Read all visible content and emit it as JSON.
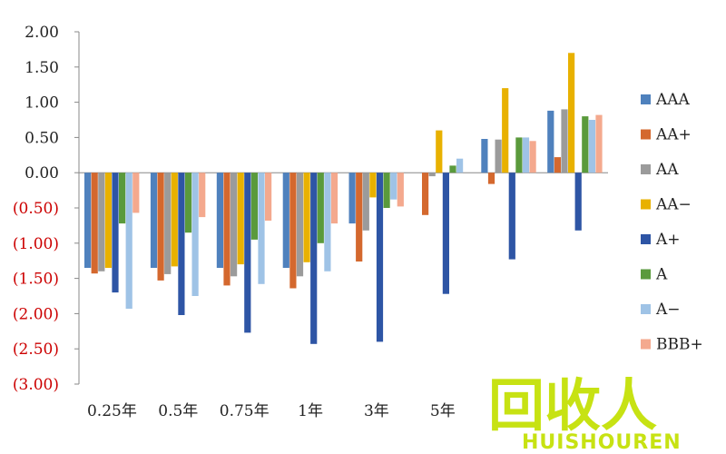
{
  "chart_data": {
    "type": "bar",
    "title": "",
    "xlabel": "",
    "ylabel": "",
    "categories": [
      "0.25年",
      "0.5年",
      "0.75年",
      "1年",
      "3年",
      "5年",
      "",
      ""
    ],
    "ylim": [
      -3.0,
      2.0
    ],
    "yticks": [
      2.0,
      1.5,
      1.0,
      0.5,
      0.0,
      -0.5,
      -1.0,
      -1.5,
      -2.0,
      -2.5,
      -3.0
    ],
    "ytick_labels": [
      "2.00",
      "1.50",
      "1.00",
      "0.50",
      "0.00",
      "(0.50)",
      "(1.00)",
      "(1.50)",
      "(2.00)",
      "(2.50)",
      "(3.00)"
    ],
    "negative_tick_color": "#cc0000",
    "positive_tick_color": "#222222",
    "grid": false,
    "legend_position": "right",
    "series": [
      {
        "name": "AAA",
        "color": "#4f81bd",
        "values": [
          -1.35,
          -1.35,
          -1.35,
          -1.35,
          -0.72,
          0.0,
          0.48,
          0.88
        ]
      },
      {
        "name": "AA+",
        "color": "#d4682e",
        "values": [
          -1.43,
          -1.53,
          -1.6,
          -1.64,
          -1.26,
          -0.6,
          -0.16,
          0.22
        ]
      },
      {
        "name": "AA",
        "color": "#9b9b9b",
        "values": [
          -1.4,
          -1.44,
          -1.47,
          -1.47,
          -0.82,
          -0.05,
          0.47,
          0.9
        ]
      },
      {
        "name": "AA−",
        "color": "#e8b100",
        "values": [
          -1.35,
          -1.33,
          -1.3,
          -1.27,
          -0.35,
          0.6,
          1.2,
          1.7
        ]
      },
      {
        "name": "A+",
        "color": "#2e55a5",
        "values": [
          -1.7,
          -2.02,
          -2.27,
          -2.43,
          -2.4,
          -1.72,
          -1.23,
          -0.82
        ]
      },
      {
        "name": "A",
        "color": "#5a9a3c",
        "values": [
          -0.72,
          -0.85,
          -0.95,
          -1.0,
          -0.5,
          0.1,
          0.5,
          0.8
        ]
      },
      {
        "name": "A−",
        "color": "#9fc3e6",
        "values": [
          -1.93,
          -1.75,
          -1.58,
          -1.4,
          -0.38,
          0.2,
          0.5,
          0.75
        ]
      },
      {
        "name": "BBB+",
        "color": "#f4a98e",
        "values": [
          -0.57,
          -0.63,
          -0.68,
          -0.72,
          -0.48,
          0.0,
          0.45,
          0.82
        ]
      }
    ]
  },
  "watermark": {
    "logo_text": "回收人",
    "sub_text": "HUISHOUREN",
    "color": "#c3e000"
  }
}
